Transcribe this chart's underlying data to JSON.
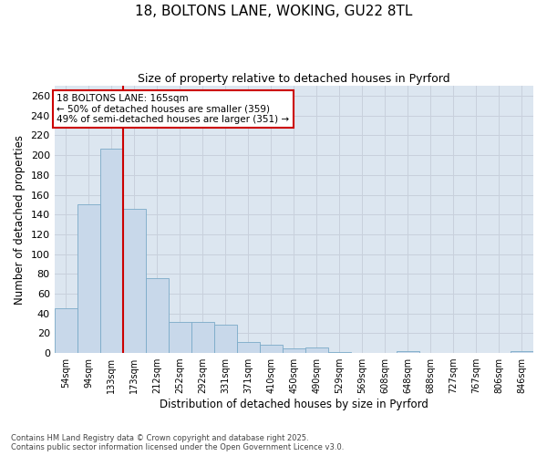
{
  "title_line1": "18, BOLTONS LANE, WOKING, GU22 8TL",
  "title_line2": "Size of property relative to detached houses in Pyrford",
  "xlabel": "Distribution of detached houses by size in Pyrford",
  "ylabel": "Number of detached properties",
  "bar_color": "#c8d8ea",
  "bar_edge_color": "#7aaac8",
  "grid_color": "#c8d0dc",
  "bg_color": "#dce6f0",
  "annotation_box_color": "#cc0000",
  "annotation_text": "18 BOLTONS LANE: 165sqm\n← 50% of detached houses are smaller (359)\n49% of semi-detached houses are larger (351) →",
  "vline_color": "#cc0000",
  "categories": [
    "54sqm",
    "94sqm",
    "133sqm",
    "173sqm",
    "212sqm",
    "252sqm",
    "292sqm",
    "331sqm",
    "371sqm",
    "410sqm",
    "450sqm",
    "490sqm",
    "529sqm",
    "569sqm",
    "608sqm",
    "648sqm",
    "688sqm",
    "727sqm",
    "767sqm",
    "806sqm",
    "846sqm"
  ],
  "values": [
    45,
    150,
    207,
    146,
    76,
    31,
    31,
    29,
    11,
    8,
    5,
    6,
    1,
    0,
    0,
    2,
    0,
    0,
    0,
    0,
    2
  ],
  "ylim": [
    0,
    270
  ],
  "yticks": [
    0,
    20,
    40,
    60,
    80,
    100,
    120,
    140,
    160,
    180,
    200,
    220,
    240,
    260
  ],
  "footer_line1": "Contains HM Land Registry data © Crown copyright and database right 2025.",
  "footer_line2": "Contains public sector information licensed under the Open Government Licence v3.0."
}
